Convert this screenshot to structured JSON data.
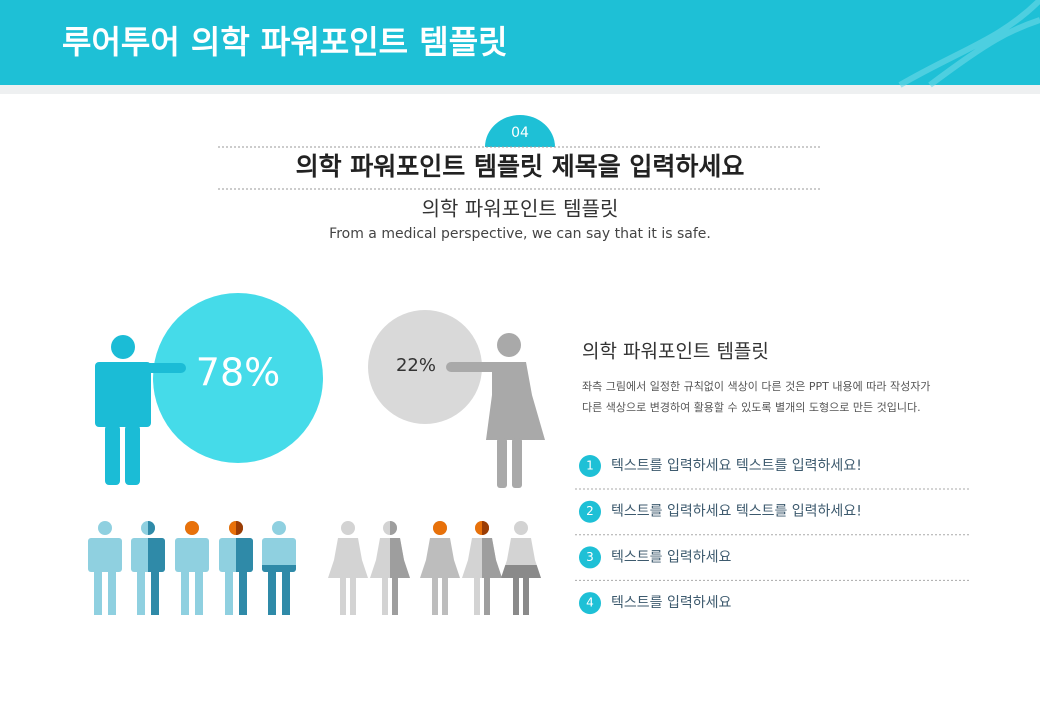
{
  "header": {
    "title": "루어투어 의학 파워포인트 템플릿"
  },
  "section": {
    "number": "04",
    "title": "의학 파워포인트 템플릿 제목을 입력하세요",
    "subtitle": "의학 파워포인트 템플릿",
    "description": "From a medical perspective, we can say that it is safe."
  },
  "infographic": {
    "male_percent": "78%",
    "female_percent": "22%"
  },
  "panel": {
    "title": "의학 파워포인트 템플릿",
    "body": [
      "좌측 그림에서 일정한 규칙없이 색상이 다른 것은 PPT 내용에 따라 작성자가",
      "다른 색상으로 변경하여 활용할 수 있도록 별개의 도형으로 만든 것입니다."
    ],
    "items": [
      {
        "number": "1",
        "text": "텍스트를 입력하세요 텍스트를 입력하세요!"
      },
      {
        "number": "2",
        "text": "텍스트를 입력하세요 텍스트를 입력하세요!"
      },
      {
        "number": "3",
        "text": "텍스트를 입력하세요"
      },
      {
        "number": "4",
        "text": "텍스트를 입력하세요"
      }
    ]
  }
}
